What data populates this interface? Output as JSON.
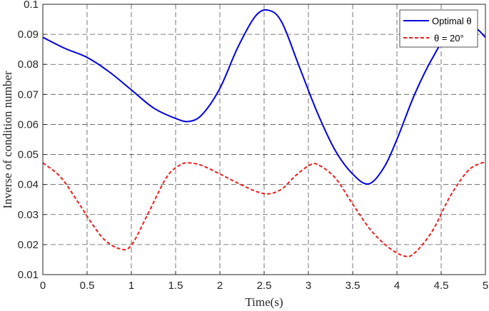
{
  "chart_data": {
    "type": "line",
    "xlabel": "Time(s)",
    "ylabel": "Inverse of condition number",
    "xlim": [
      0,
      5
    ],
    "ylim": [
      0.01,
      0.1
    ],
    "xticks": [
      0,
      0.5,
      1,
      1.5,
      2,
      2.5,
      3,
      3.5,
      4,
      4.5,
      5
    ],
    "xtick_labels": [
      "0",
      "0.5",
      "1",
      "1.5",
      "2",
      "2.5",
      "3",
      "3.5",
      "4",
      "4.5",
      "5"
    ],
    "yticks": [
      0.01,
      0.02,
      0.03,
      0.04,
      0.05,
      0.06,
      0.07,
      0.08,
      0.09,
      0.1
    ],
    "ytick_labels": [
      "0.01",
      "0.02",
      "0.03",
      "0.04",
      "0.05",
      "0.06",
      "0.07",
      "0.08",
      "0.09",
      "0.1"
    ],
    "grid": true,
    "grid_style": "dashed",
    "legend_position": "top-right",
    "series": [
      {
        "name": "Optimal θ",
        "color": "#0000dd",
        "style": "solid",
        "x": [
          0,
          0.25,
          0.5,
          0.75,
          1.0,
          1.25,
          1.5,
          1.65,
          1.8,
          2.0,
          2.2,
          2.4,
          2.55,
          2.7,
          2.9,
          3.1,
          3.3,
          3.5,
          3.68,
          3.85,
          4.0,
          4.2,
          4.4,
          4.6,
          4.85,
          5.0
        ],
        "values": [
          0.089,
          0.0853,
          0.0823,
          0.0775,
          0.0715,
          0.0655,
          0.062,
          0.061,
          0.0633,
          0.072,
          0.0855,
          0.096,
          0.098,
          0.094,
          0.079,
          0.064,
          0.0515,
          0.0435,
          0.0402,
          0.0455,
          0.055,
          0.07,
          0.082,
          0.0908,
          0.0925,
          0.089
        ]
      },
      {
        "name": "θ = 20°",
        "color": "#ee1c1c",
        "style": "dashed",
        "x": [
          0,
          0.2,
          0.4,
          0.55,
          0.7,
          0.87,
          1.0,
          1.2,
          1.4,
          1.55,
          1.65,
          1.8,
          2.0,
          2.2,
          2.4,
          2.55,
          2.7,
          2.85,
          3.0,
          3.1,
          3.3,
          3.5,
          3.7,
          3.9,
          4.08,
          4.2,
          4.4,
          4.6,
          4.8,
          4.95,
          5.0
        ],
        "values": [
          0.0472,
          0.0425,
          0.034,
          0.0272,
          0.0215,
          0.0186,
          0.0198,
          0.031,
          0.0425,
          0.0465,
          0.0472,
          0.0463,
          0.0435,
          0.0405,
          0.0378,
          0.0369,
          0.0385,
          0.0428,
          0.0462,
          0.0467,
          0.0423,
          0.0335,
          0.025,
          0.0192,
          0.0162,
          0.0172,
          0.0245,
          0.036,
          0.0445,
          0.0471,
          0.0472
        ]
      }
    ]
  }
}
